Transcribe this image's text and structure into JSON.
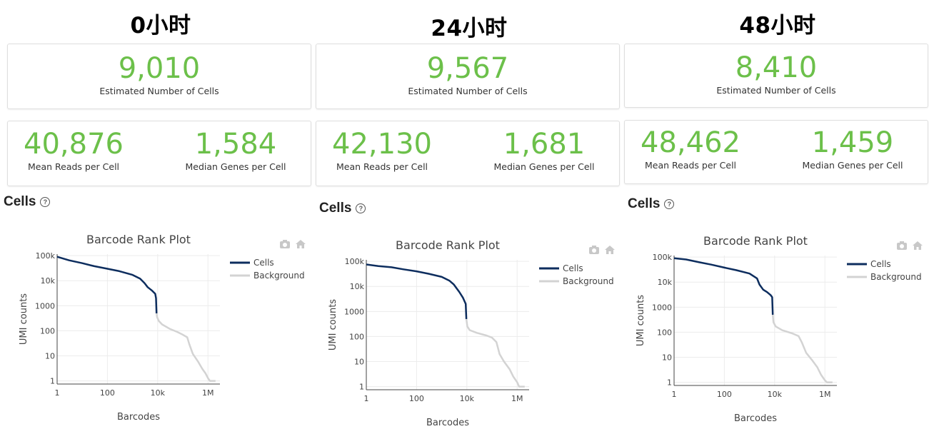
{
  "panels": [
    {
      "title": "0小时",
      "cells": {
        "value": "9,010",
        "label": "Estimated Number of Cells"
      },
      "reads": {
        "value": "40,876",
        "label": "Mean Reads per Cell"
      },
      "genes": {
        "value": "1,584",
        "label": "Median Genes per Cell"
      },
      "section_title": "Cells"
    },
    {
      "title": "24小时",
      "cells": {
        "value": "9,567",
        "label": "Estimated Number of Cells"
      },
      "reads": {
        "value": "42,130",
        "label": "Mean Reads per Cell"
      },
      "genes": {
        "value": "1,681",
        "label": "Median Genes per Cell"
      },
      "section_title": "Cells"
    },
    {
      "title": "48小时",
      "cells": {
        "value": "8,410",
        "label": "Estimated Number of Cells"
      },
      "reads": {
        "value": "48,462",
        "label": "Mean Reads per Cell"
      },
      "genes": {
        "value": "1,459",
        "label": "Median Genes per Cell"
      },
      "section_title": "Cells"
    }
  ],
  "chart_data": [
    {
      "type": "line",
      "title": "Barcode Rank Plot",
      "xlabel": "Barcodes",
      "ylabel": "UMI counts",
      "xscale": "log",
      "yscale": "log",
      "xlim": [
        1,
        3000000
      ],
      "ylim": [
        0.75,
        115000
      ],
      "xticks": [
        {
          "v": 1,
          "label": "1"
        },
        {
          "v": 100,
          "label": "100"
        },
        {
          "v": 10000,
          "label": "10k"
        },
        {
          "v": 1000000,
          "label": "1M"
        }
      ],
      "yticks": [
        {
          "v": 1,
          "label": "1"
        },
        {
          "v": 10,
          "label": "10"
        },
        {
          "v": 100,
          "label": "100"
        },
        {
          "v": 1000,
          "label": "1000"
        },
        {
          "v": 10000,
          "label": "10k"
        },
        {
          "v": 100000,
          "label": "100k"
        }
      ],
      "legend": "top-right",
      "grid": true,
      "series": [
        {
          "name": "Cells",
          "color": "#0d2d5e",
          "points": [
            [
              1,
              90000
            ],
            [
              3,
              65000
            ],
            [
              10,
              50000
            ],
            [
              30,
              38000
            ],
            [
              100,
              30000
            ],
            [
              300,
              24000
            ],
            [
              1000,
              17000
            ],
            [
              2000,
              12000
            ],
            [
              3000,
              8000
            ],
            [
              4000,
              5500
            ],
            [
              6000,
              4000
            ],
            [
              8000,
              3000
            ],
            [
              8600,
              2000
            ],
            [
              9010,
              500
            ]
          ]
        },
        {
          "name": "Background",
          "color": "#d3d3d3",
          "points": [
            [
              9010,
              500
            ],
            [
              9500,
              350
            ],
            [
              11000,
              250
            ],
            [
              15000,
              180
            ],
            [
              30000,
              120
            ],
            [
              60000,
              90
            ],
            [
              100000,
              70
            ],
            [
              150000,
              55
            ],
            [
              180000,
              30
            ],
            [
              250000,
              12
            ],
            [
              400000,
              6
            ],
            [
              600000,
              3
            ],
            [
              800000,
              2
            ],
            [
              1000000,
              1.3
            ],
            [
              1200000,
              1
            ],
            [
              2000000,
              1
            ]
          ]
        }
      ],
      "modebar_icons": [
        "camera-icon",
        "home-icon"
      ]
    },
    {
      "type": "line",
      "title": "Barcode Rank Plot",
      "xlabel": "Barcodes",
      "ylabel": "UMI counts",
      "xscale": "log",
      "yscale": "log",
      "xlim": [
        1,
        3000000
      ],
      "ylim": [
        0.75,
        115000
      ],
      "xticks": [
        {
          "v": 1,
          "label": "1"
        },
        {
          "v": 100,
          "label": "100"
        },
        {
          "v": 10000,
          "label": "10k"
        },
        {
          "v": 1000000,
          "label": "1M"
        }
      ],
      "yticks": [
        {
          "v": 1,
          "label": "1"
        },
        {
          "v": 10,
          "label": "10"
        },
        {
          "v": 100,
          "label": "100"
        },
        {
          "v": 1000,
          "label": "1000"
        },
        {
          "v": 10000,
          "label": "10k"
        },
        {
          "v": 100000,
          "label": "100k"
        }
      ],
      "legend": "top-right",
      "grid": true,
      "series": [
        {
          "name": "Cells",
          "color": "#0d2d5e",
          "points": [
            [
              1,
              75000
            ],
            [
              3,
              65000
            ],
            [
              10,
              58000
            ],
            [
              30,
              48000
            ],
            [
              100,
              40000
            ],
            [
              300,
              32000
            ],
            [
              1000,
              24000
            ],
            [
              2000,
              17000
            ],
            [
              3000,
              12000
            ],
            [
              5000,
              6000
            ],
            [
              7000,
              3500
            ],
            [
              9000,
              2000
            ],
            [
              9567,
              500
            ]
          ]
        },
        {
          "name": "Background",
          "color": "#d3d3d3",
          "points": [
            [
              9567,
              500
            ],
            [
              10500,
              250
            ],
            [
              13000,
              180
            ],
            [
              25000,
              140
            ],
            [
              60000,
              110
            ],
            [
              100000,
              90
            ],
            [
              150000,
              60
            ],
            [
              200000,
              20
            ],
            [
              300000,
              10
            ],
            [
              500000,
              5
            ],
            [
              700000,
              2.5
            ],
            [
              1000000,
              1.5
            ],
            [
              1200000,
              1
            ],
            [
              2000000,
              1
            ]
          ]
        }
      ],
      "modebar_icons": [
        "camera-icon",
        "home-icon"
      ]
    },
    {
      "type": "line",
      "title": "Barcode Rank Plot",
      "xlabel": "Barcodes",
      "ylabel": "UMI counts",
      "xscale": "log",
      "yscale": "log",
      "xlim": [
        1,
        3000000
      ],
      "ylim": [
        0.75,
        115000
      ],
      "xticks": [
        {
          "v": 1,
          "label": "1"
        },
        {
          "v": 100,
          "label": "100"
        },
        {
          "v": 10000,
          "label": "10k"
        },
        {
          "v": 1000000,
          "label": "1M"
        }
      ],
      "yticks": [
        {
          "v": 1,
          "label": "1"
        },
        {
          "v": 10,
          "label": "10"
        },
        {
          "v": 100,
          "label": "100"
        },
        {
          "v": 1000,
          "label": "1000"
        },
        {
          "v": 10000,
          "label": "10k"
        },
        {
          "v": 100000,
          "label": "100k"
        }
      ],
      "legend": "top-right",
      "grid": true,
      "series": [
        {
          "name": "Cells",
          "color": "#0d2d5e",
          "points": [
            [
              1,
              90000
            ],
            [
              3,
              80000
            ],
            [
              10,
              62000
            ],
            [
              30,
              50000
            ],
            [
              100,
              38000
            ],
            [
              300,
              30000
            ],
            [
              1000,
              22000
            ],
            [
              2000,
              14000
            ],
            [
              2500,
              8000
            ],
            [
              3500,
              5000
            ],
            [
              5000,
              4000
            ],
            [
              7000,
              3000
            ],
            [
              8000,
              2500
            ],
            [
              8410,
              500
            ]
          ]
        },
        {
          "name": "Background",
          "color": "#d3d3d3",
          "points": [
            [
              8410,
              500
            ],
            [
              9000,
              250
            ],
            [
              11000,
              170
            ],
            [
              20000,
              120
            ],
            [
              50000,
              90
            ],
            [
              90000,
              70
            ],
            [
              120000,
              40
            ],
            [
              180000,
              15
            ],
            [
              300000,
              8
            ],
            [
              500000,
              4
            ],
            [
              700000,
              2
            ],
            [
              1000000,
              1.2
            ],
            [
              1200000,
              1
            ],
            [
              2000000,
              1
            ]
          ]
        }
      ],
      "modebar_icons": [
        "camera-icon",
        "home-icon"
      ]
    }
  ]
}
